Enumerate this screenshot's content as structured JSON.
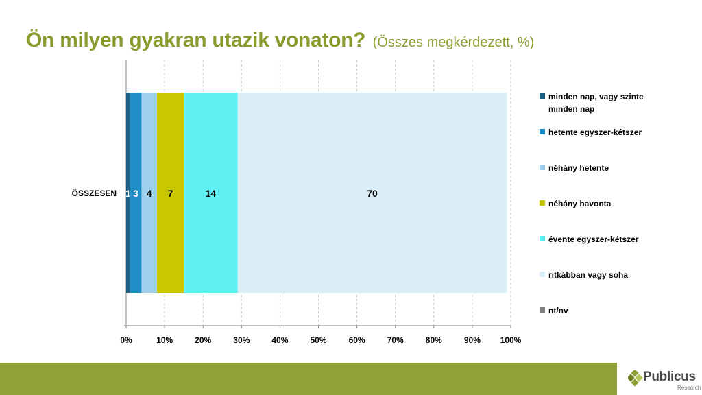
{
  "title": {
    "main": "Ön milyen gyakran utazik vonaton?",
    "sub": "(Összes megkérdezett, %)"
  },
  "logo": {
    "name": "Publicus",
    "sub": "Research"
  },
  "colors": {
    "title": "#8a9a2c",
    "footer": "#92a13a"
  },
  "chart_data": {
    "type": "bar",
    "orientation": "horizontal",
    "stacked": true,
    "categories": [
      "ÖSSZESEN"
    ],
    "series": [
      {
        "name": "minden nap, vagy szinte minden nap",
        "values": [
          1
        ],
        "color": "#1c5f82",
        "label_color": "#ffffff"
      },
      {
        "name": "hetente egyszer-kétszer",
        "values": [
          3
        ],
        "color": "#1f8dc6",
        "label_color": "#ffffff"
      },
      {
        "name": "néhány hetente",
        "values": [
          4
        ],
        "color": "#9dd1ee",
        "label_color": "#000000"
      },
      {
        "name": "néhány havonta",
        "values": [
          7
        ],
        "color": "#c9c800",
        "label_color": "#000000"
      },
      {
        "name": "évente egyszer-kétszer",
        "values": [
          14
        ],
        "color": "#5ef0f2",
        "label_color": "#000000"
      },
      {
        "name": "ritkábban vagy soha",
        "values": [
          70
        ],
        "color": "#daeef7",
        "label_color": "#000000"
      },
      {
        "name": "nt/nv",
        "values": [
          0
        ],
        "color": "#7f7f7f",
        "label_color": "#000000"
      }
    ],
    "data_labels": [
      "1",
      "3",
      "4",
      "7",
      "14",
      "70",
      ""
    ],
    "xlim": [
      0,
      100
    ],
    "xticks": [
      "0%",
      "10%",
      "20%",
      "30%",
      "40%",
      "50%",
      "60%",
      "70%",
      "80%",
      "90%",
      "100%"
    ],
    "grid": "vertical dashed",
    "legend_position": "right"
  }
}
